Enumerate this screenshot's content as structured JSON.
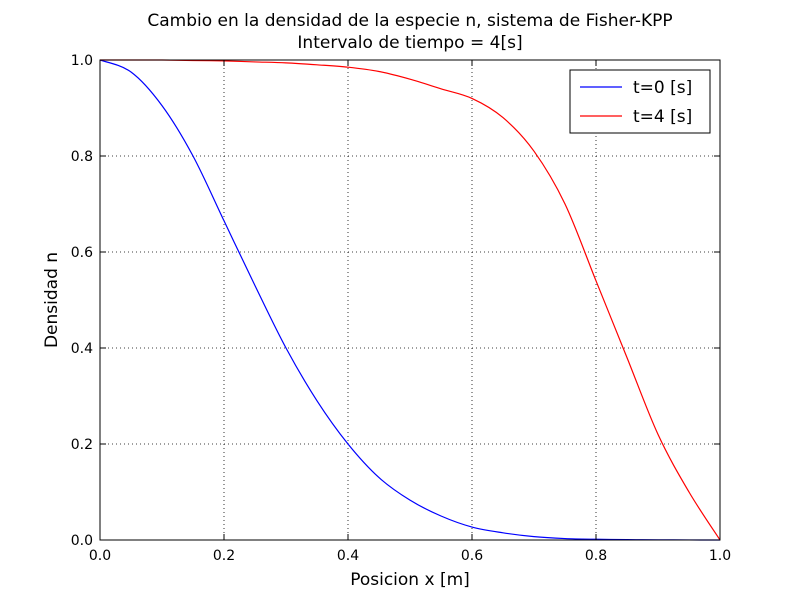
{
  "chart_data": {
    "type": "line",
    "title": "Cambio en la densidad de la especie n, sistema de Fisher-KPP",
    "subtitle": "Intervalo de tiempo = 4[s]",
    "xlabel": "Posicion x [m]",
    "ylabel": "Densidad n",
    "xlim": [
      0.0,
      1.0
    ],
    "ylim": [
      0.0,
      1.0
    ],
    "xticks": [
      "0.0",
      "0.2",
      "0.4",
      "0.6",
      "0.8",
      "1.0"
    ],
    "yticks": [
      "0.0",
      "0.2",
      "0.4",
      "0.6",
      "0.8",
      "1.0"
    ],
    "grid": true,
    "legend_position": "top-right",
    "x": [
      0.0,
      0.05,
      0.1,
      0.15,
      0.2,
      0.25,
      0.3,
      0.35,
      0.4,
      0.45,
      0.5,
      0.55,
      0.6,
      0.65,
      0.7,
      0.75,
      0.8,
      0.85,
      0.9,
      0.95,
      1.0
    ],
    "series": [
      {
        "name": "t=0 [s]",
        "color": "#0000ff",
        "values": [
          1.0,
          0.975,
          0.905,
          0.8,
          0.665,
          0.53,
          0.4,
          0.29,
          0.2,
          0.13,
          0.083,
          0.05,
          0.027,
          0.015,
          0.007,
          0.003,
          0.0015,
          0.0007,
          0.0003,
          0.0001,
          0.0
        ]
      },
      {
        "name": "t=4 [s]",
        "color": "#ff0000",
        "values": [
          1.0,
          1.0,
          1.0,
          0.999,
          0.998,
          0.996,
          0.994,
          0.99,
          0.985,
          0.976,
          0.96,
          0.94,
          0.92,
          0.88,
          0.81,
          0.7,
          0.54,
          0.38,
          0.22,
          0.1,
          0.0
        ]
      }
    ]
  }
}
